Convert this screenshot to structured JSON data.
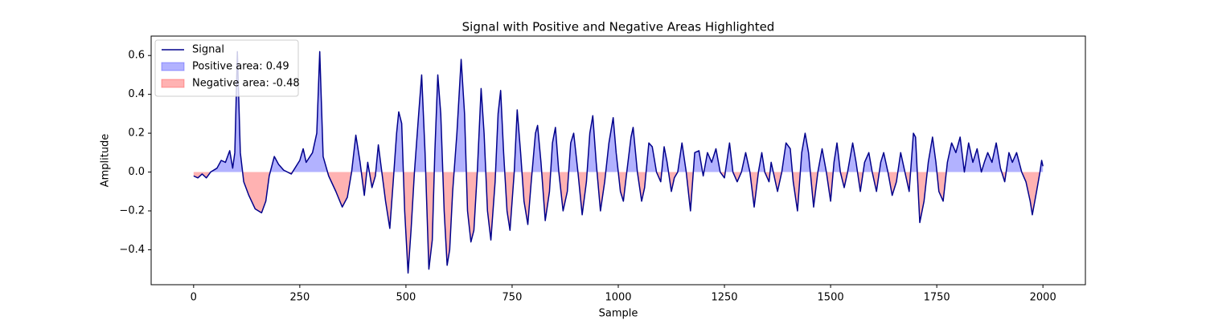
{
  "chart_data": {
    "type": "line",
    "title": "Signal with Positive and Negative Areas Highlighted",
    "xlabel": "Sample",
    "ylabel": "Amplitude",
    "x": [
      0,
      10,
      20,
      30,
      40,
      55,
      65,
      75,
      85,
      92,
      97,
      103,
      110,
      118,
      130,
      145,
      160,
      170,
      178,
      190,
      200,
      212,
      230,
      250,
      258,
      265,
      280,
      290,
      297,
      305,
      318,
      335,
      350,
      362,
      372,
      382,
      392,
      402,
      410,
      420,
      428,
      435,
      442,
      452,
      462,
      470,
      478,
      483,
      490,
      497,
      505,
      512,
      520,
      530,
      537,
      545,
      554,
      562,
      568,
      575,
      582,
      590,
      597,
      603,
      610,
      620,
      630,
      638,
      645,
      653,
      660,
      668,
      677,
      684,
      692,
      700,
      710,
      717,
      723,
      730,
      738,
      745,
      755,
      762,
      770,
      778,
      787,
      795,
      805,
      810,
      818,
      828,
      838,
      845,
      852,
      860,
      870,
      880,
      888,
      895,
      905,
      915,
      925,
      933,
      940,
      948,
      958,
      968,
      978,
      988,
      995,
      1005,
      1012,
      1020,
      1030,
      1035,
      1045,
      1055,
      1062,
      1072,
      1080,
      1090,
      1100,
      1108,
      1115,
      1125,
      1132,
      1140,
      1150,
      1160,
      1170,
      1180,
      1190,
      1200,
      1210,
      1220,
      1230,
      1240,
      1250,
      1262,
      1270,
      1280,
      1290,
      1300,
      1310,
      1320,
      1330,
      1338,
      1345,
      1355,
      1360,
      1375,
      1385,
      1395,
      1405,
      1412,
      1422,
      1432,
      1440,
      1448,
      1460,
      1470,
      1480,
      1490,
      1500,
      1508,
      1515,
      1523,
      1532,
      1540,
      1552,
      1560,
      1570,
      1580,
      1590,
      1598,
      1608,
      1618,
      1625,
      1635,
      1645,
      1655,
      1665,
      1675,
      1685,
      1695,
      1700,
      1710,
      1720,
      1730,
      1740,
      1748,
      1755,
      1765,
      1775,
      1785,
      1795,
      1805,
      1815,
      1825,
      1835,
      1845,
      1855,
      1862,
      1870,
      1880,
      1890,
      1900,
      1910,
      1920,
      1928,
      1938,
      1950,
      1960,
      1970,
      1975,
      1985,
      1993,
      1997,
      2000
    ],
    "series": [
      {
        "name": "Signal",
        "color": "#00008b",
        "values": [
          -0.02,
          -0.03,
          -0.01,
          -0.03,
          0.0,
          0.02,
          0.06,
          0.05,
          0.11,
          0.02,
          0.1,
          0.62,
          0.1,
          -0.05,
          -0.12,
          -0.19,
          -0.21,
          -0.15,
          -0.02,
          0.08,
          0.04,
          0.01,
          -0.01,
          0.06,
          0.12,
          0.05,
          0.1,
          0.2,
          0.62,
          0.08,
          -0.02,
          -0.1,
          -0.18,
          -0.13,
          0.0,
          0.19,
          0.05,
          -0.12,
          0.05,
          -0.08,
          -0.02,
          0.14,
          0.02,
          -0.15,
          -0.29,
          -0.05,
          0.2,
          0.31,
          0.25,
          -0.2,
          -0.52,
          -0.3,
          0.0,
          0.3,
          0.5,
          0.1,
          -0.5,
          -0.35,
          0.1,
          0.5,
          0.3,
          -0.2,
          -0.48,
          -0.4,
          -0.1,
          0.2,
          0.58,
          0.3,
          -0.2,
          -0.36,
          -0.3,
          0.0,
          0.43,
          0.2,
          -0.2,
          -0.35,
          -0.05,
          0.3,
          0.42,
          0.1,
          -0.2,
          -0.3,
          0.0,
          0.32,
          0.1,
          -0.15,
          -0.27,
          -0.05,
          0.2,
          0.24,
          0.05,
          -0.25,
          -0.1,
          0.15,
          0.23,
          0.0,
          -0.2,
          -0.1,
          0.15,
          0.2,
          0.0,
          -0.22,
          -0.05,
          0.2,
          0.29,
          0.05,
          -0.2,
          -0.05,
          0.15,
          0.28,
          0.1,
          -0.1,
          -0.15,
          0.0,
          0.18,
          0.23,
          0.0,
          -0.15,
          -0.08,
          0.15,
          0.13,
          0.0,
          -0.05,
          0.13,
          0.05,
          -0.1,
          -0.03,
          0.0,
          0.15,
          0.0,
          -0.2,
          0.1,
          0.11,
          -0.02,
          0.1,
          0.05,
          0.12,
          0.0,
          -0.03,
          0.15,
          0.0,
          -0.05,
          0.0,
          0.1,
          0.0,
          -0.18,
          0.0,
          0.1,
          0.0,
          -0.05,
          0.05,
          -0.1,
          0.0,
          0.15,
          0.12,
          -0.05,
          -0.2,
          0.1,
          0.2,
          0.1,
          -0.18,
          0.0,
          0.12,
          0.0,
          -0.15,
          0.05,
          0.15,
          0.0,
          -0.08,
          0.0,
          0.15,
          0.05,
          -0.1,
          0.05,
          0.1,
          0.0,
          -0.1,
          0.05,
          0.1,
          0.0,
          -0.12,
          -0.05,
          0.1,
          0.0,
          -0.1,
          0.2,
          0.18,
          -0.26,
          -0.15,
          0.05,
          0.18,
          0.05,
          -0.1,
          -0.15,
          0.05,
          0.15,
          0.1,
          0.18,
          0.0,
          0.15,
          0.05,
          0.12,
          0.0,
          0.05,
          0.1,
          0.05,
          0.15,
          0.02,
          -0.05,
          0.1,
          0.05,
          0.1,
          0.0,
          -0.05,
          -0.15,
          -0.22,
          -0.1,
          0.0,
          0.06,
          0.03
        ]
      }
    ],
    "fills": [
      {
        "name": "Positive area: 0.49",
        "color": "#0000ff"
      },
      {
        "name": "Negative area: -0.48",
        "color": "#ff0000"
      }
    ],
    "xlim": [
      -100,
      2100
    ],
    "xticks": [
      0,
      250,
      500,
      750,
      1000,
      1250,
      1500,
      1750,
      2000
    ],
    "ylim": [
      -0.58,
      0.7
    ],
    "yticks": [
      {
        "value": -0.4,
        "label": "−0.4"
      },
      {
        "value": -0.2,
        "label": "−0.2"
      },
      {
        "value": 0,
        "label": "0.0"
      },
      0.2,
      0.4,
      0.6
    ],
    "legend": "upper left"
  }
}
